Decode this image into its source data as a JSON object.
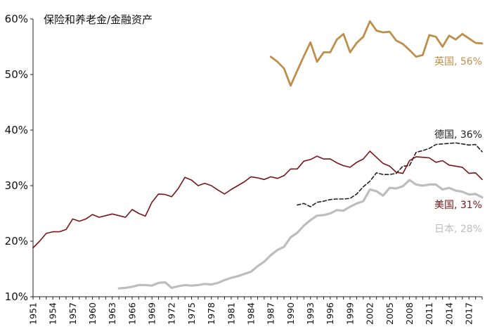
{
  "chart_data": {
    "type": "line",
    "title": "保险和养老金/金融资产",
    "xlabel": "",
    "ylabel": "",
    "xlim": [
      1951,
      2019
    ],
    "ylim": [
      0.1,
      0.6
    ],
    "yticks": [
      "10%",
      "20%",
      "30%",
      "40%",
      "50%",
      "60%"
    ],
    "xticks": [
      "1951",
      "1954",
      "1957",
      "1960",
      "1963",
      "1966",
      "1969",
      "1972",
      "1975",
      "1978",
      "1981",
      "1984",
      "1987",
      "1990",
      "1993",
      "1996",
      "1999",
      "2002",
      "2005",
      "2008",
      "2011",
      "2014",
      "2017"
    ],
    "grid": false,
    "series": [
      {
        "name": "英国",
        "end_label": "英国, 56%",
        "color": "#BE8F4A",
        "style": "solid",
        "x": [
          1987,
          1988,
          1989,
          1990,
          1991,
          1992,
          1993,
          1994,
          1995,
          1996,
          1997,
          1998,
          1999,
          2000,
          2001,
          2002,
          2003,
          2004,
          2005,
          2006,
          2007,
          2008,
          2009,
          2010,
          2011,
          2012,
          2013,
          2014,
          2015,
          2016,
          2017,
          2018,
          2019
        ],
        "values": [
          0.532,
          0.523,
          0.511,
          0.48,
          0.507,
          0.533,
          0.558,
          0.523,
          0.54,
          0.54,
          0.563,
          0.573,
          0.54,
          0.557,
          0.568,
          0.596,
          0.579,
          0.576,
          0.577,
          0.561,
          0.555,
          0.544,
          0.532,
          0.535,
          0.571,
          0.568,
          0.55,
          0.57,
          0.563,
          0.573,
          0.565,
          0.557,
          0.556
        ]
      },
      {
        "name": "德国",
        "end_label": "德国, 36%",
        "color": "#222222",
        "style": "dashed",
        "x": [
          1991,
          1992,
          1993,
          1994,
          1995,
          1996,
          1997,
          1998,
          1999,
          2000,
          2001,
          2002,
          2003,
          2004,
          2005,
          2006,
          2007,
          2008,
          2009,
          2010,
          2011,
          2012,
          2013,
          2014,
          2015,
          2016,
          2017,
          2018,
          2019
        ],
        "values": [
          0.265,
          0.268,
          0.262,
          0.27,
          0.272,
          0.275,
          0.276,
          0.276,
          0.277,
          0.285,
          0.298,
          0.308,
          0.323,
          0.32,
          0.32,
          0.322,
          0.335,
          0.336,
          0.36,
          0.363,
          0.367,
          0.374,
          0.375,
          0.376,
          0.377,
          0.375,
          0.373,
          0.374,
          0.361
        ]
      },
      {
        "name": "美国",
        "end_label": "美国, 31%",
        "color": "#7A1515",
        "style": "solid",
        "x": [
          1951,
          1952,
          1953,
          1954,
          1955,
          1956,
          1957,
          1958,
          1959,
          1960,
          1961,
          1962,
          1963,
          1964,
          1965,
          1966,
          1967,
          1968,
          1969,
          1970,
          1971,
          1972,
          1973,
          1974,
          1975,
          1976,
          1977,
          1978,
          1979,
          1980,
          1981,
          1982,
          1983,
          1984,
          1985,
          1986,
          1987,
          1988,
          1989,
          1990,
          1991,
          1992,
          1993,
          1994,
          1995,
          1996,
          1997,
          1998,
          1999,
          2000,
          2001,
          2002,
          2003,
          2004,
          2005,
          2006,
          2007,
          2008,
          2009,
          2010,
          2011,
          2012,
          2013,
          2014,
          2015,
          2016,
          2017,
          2018,
          2019
        ],
        "values": [
          0.188,
          0.2,
          0.214,
          0.217,
          0.217,
          0.221,
          0.24,
          0.236,
          0.24,
          0.248,
          0.243,
          0.246,
          0.249,
          0.246,
          0.243,
          0.257,
          0.25,
          0.245,
          0.27,
          0.285,
          0.284,
          0.28,
          0.295,
          0.315,
          0.31,
          0.3,
          0.304,
          0.3,
          0.292,
          0.285,
          0.293,
          0.3,
          0.307,
          0.316,
          0.314,
          0.311,
          0.316,
          0.313,
          0.318,
          0.33,
          0.33,
          0.344,
          0.347,
          0.353,
          0.348,
          0.348,
          0.341,
          0.336,
          0.333,
          0.342,
          0.348,
          0.362,
          0.351,
          0.34,
          0.335,
          0.324,
          0.322,
          0.345,
          0.352,
          0.351,
          0.35,
          0.342,
          0.345,
          0.337,
          0.335,
          0.333,
          0.322,
          0.323,
          0.311
        ]
      },
      {
        "name": "日本",
        "end_label": "日本, 28%",
        "color": "#BDBDBD",
        "style": "solid",
        "x": [
          1964,
          1965,
          1966,
          1967,
          1968,
          1969,
          1970,
          1971,
          1972,
          1973,
          1974,
          1975,
          1976,
          1977,
          1978,
          1979,
          1980,
          1981,
          1982,
          1983,
          1984,
          1985,
          1986,
          1987,
          1988,
          1989,
          1990,
          1991,
          1992,
          1993,
          1994,
          1995,
          1996,
          1997,
          1998,
          1999,
          2000,
          2001,
          2002,
          2003,
          2004,
          2005,
          2006,
          2007,
          2008,
          2009,
          2010,
          2011,
          2012,
          2013,
          2014,
          2015,
          2016,
          2017,
          2018,
          2019
        ],
        "values": [
          0.115,
          0.116,
          0.118,
          0.121,
          0.121,
          0.12,
          0.125,
          0.126,
          0.116,
          0.119,
          0.121,
          0.12,
          0.121,
          0.123,
          0.122,
          0.125,
          0.13,
          0.134,
          0.137,
          0.141,
          0.145,
          0.155,
          0.163,
          0.175,
          0.184,
          0.19,
          0.207,
          0.215,
          0.228,
          0.238,
          0.246,
          0.247,
          0.25,
          0.256,
          0.255,
          0.262,
          0.268,
          0.272,
          0.293,
          0.29,
          0.282,
          0.296,
          0.295,
          0.299,
          0.31,
          0.302,
          0.3,
          0.302,
          0.302,
          0.293,
          0.296,
          0.291,
          0.289,
          0.284,
          0.285,
          0.279
        ]
      }
    ]
  }
}
